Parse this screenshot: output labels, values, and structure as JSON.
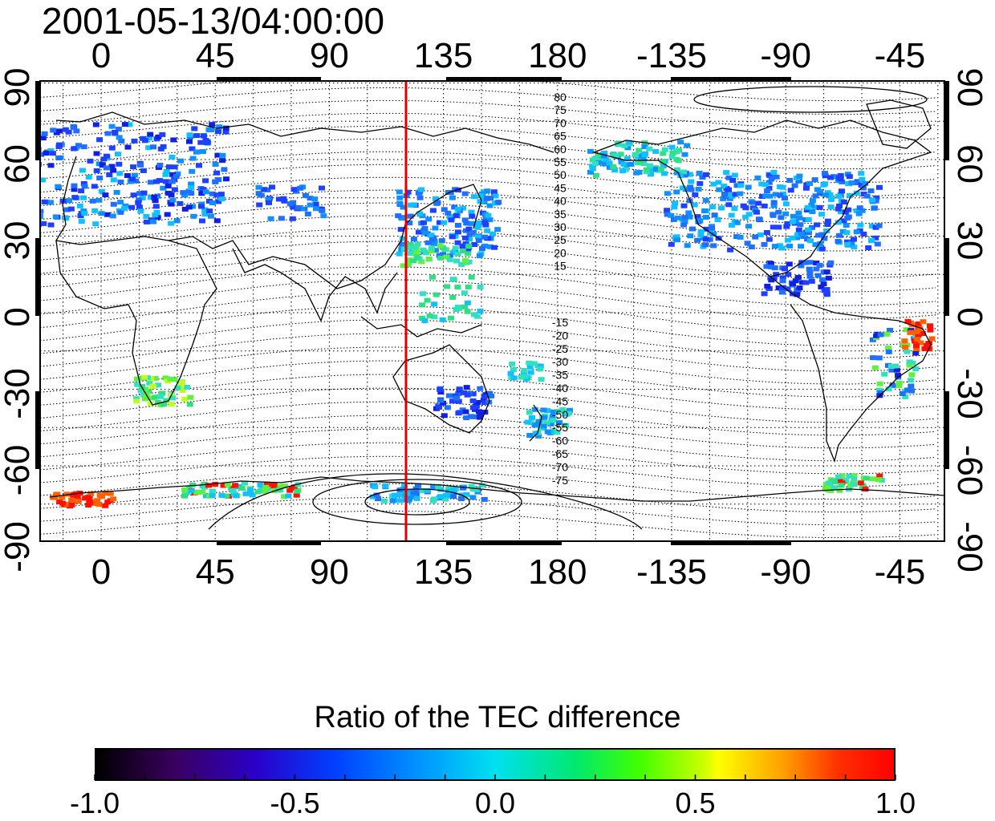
{
  "title": "2001-05-13/04:00:00",
  "map": {
    "x_ticks": [
      "0",
      "45",
      "90",
      "135",
      "180",
      "-135",
      "-90",
      "-45"
    ],
    "y_ticks": [
      "90",
      "60",
      "30",
      "0",
      "-30",
      "-60",
      "-90"
    ],
    "meridian_line_color": "#dd0000",
    "contour_labels_north": [
      "80",
      "75",
      "70",
      "65",
      "60",
      "55",
      "50",
      "45",
      "40",
      "35",
      "30",
      "25",
      "20",
      "15"
    ],
    "contour_labels_south": [
      "-15",
      "-20",
      "-25",
      "-30",
      "-35",
      "-40",
      "-45",
      "-50",
      "-55",
      "-60",
      "-65",
      "-70",
      "-75"
    ]
  },
  "colorbar": {
    "title": "Ratio of the TEC difference",
    "ticks": [
      "-1.0",
      "-0.5",
      "0.0",
      "0.5",
      "1.0"
    ],
    "range": [
      -1.0,
      1.0
    ]
  }
}
